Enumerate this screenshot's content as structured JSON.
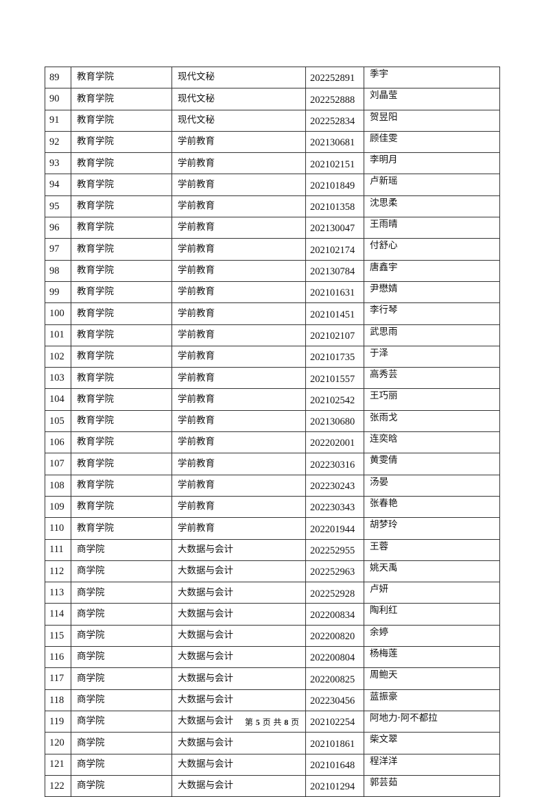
{
  "table": {
    "rows": [
      [
        "89",
        "教育学院",
        "现代文秘",
        "202252891",
        "季宇"
      ],
      [
        "90",
        "教育学院",
        "现代文秘",
        "202252888",
        "刘晶莹"
      ],
      [
        "91",
        "教育学院",
        "现代文秘",
        "202252834",
        "贺昱阳"
      ],
      [
        "92",
        "教育学院",
        "学前教育",
        "202130681",
        "顾佳雯"
      ],
      [
        "93",
        "教育学院",
        "学前教育",
        "202102151",
        "李明月"
      ],
      [
        "94",
        "教育学院",
        "学前教育",
        "202101849",
        "卢新瑶"
      ],
      [
        "95",
        "教育学院",
        "学前教育",
        "202101358",
        "沈思柔"
      ],
      [
        "96",
        "教育学院",
        "学前教育",
        "202130047",
        "王雨晴"
      ],
      [
        "97",
        "教育学院",
        "学前教育",
        "202102174",
        "付舒心"
      ],
      [
        "98",
        "教育学院",
        "学前教育",
        "202130784",
        "唐鑫宇"
      ],
      [
        "99",
        "教育学院",
        "学前教育",
        "202101631",
        "尹懋婧"
      ],
      [
        "100",
        "教育学院",
        "学前教育",
        "202101451",
        "李行琴"
      ],
      [
        "101",
        "教育学院",
        "学前教育",
        "202102107",
        "武思雨"
      ],
      [
        "102",
        "教育学院",
        "学前教育",
        "202101735",
        "于泽"
      ],
      [
        "103",
        "教育学院",
        "学前教育",
        "202101557",
        "高秀芸"
      ],
      [
        "104",
        "教育学院",
        "学前教育",
        "202102542",
        "王巧丽"
      ],
      [
        "105",
        "教育学院",
        "学前教育",
        "202130680",
        "张雨戈"
      ],
      [
        "106",
        "教育学院",
        "学前教育",
        "202202001",
        "连奕晗"
      ],
      [
        "107",
        "教育学院",
        "学前教育",
        "202230316",
        "黄雯倩"
      ],
      [
        "108",
        "教育学院",
        "学前教育",
        "202230243",
        "汤晏"
      ],
      [
        "109",
        "教育学院",
        "学前教育",
        "202230343",
        "张春艳"
      ],
      [
        "110",
        "教育学院",
        "学前教育",
        "202201944",
        "胡梦玲"
      ],
      [
        "111",
        "商学院",
        "大数据与会计",
        "202252955",
        "王蓉"
      ],
      [
        "112",
        "商学院",
        "大数据与会计",
        "202252963",
        "姚天禹"
      ],
      [
        "113",
        "商学院",
        "大数据与会计",
        "202252928",
        "卢妍"
      ],
      [
        "114",
        "商学院",
        "大数据与会计",
        "202200834",
        "陶利红"
      ],
      [
        "115",
        "商学院",
        "大数据与会计",
        "202200820",
        "余婷"
      ],
      [
        "116",
        "商学院",
        "大数据与会计",
        "202200804",
        "杨梅莲"
      ],
      [
        "117",
        "商学院",
        "大数据与会计",
        "202200825",
        "周鲍天"
      ],
      [
        "118",
        "商学院",
        "大数据与会计",
        "202230456",
        "蓝振豪"
      ],
      [
        "119",
        "商学院",
        "大数据与会计",
        "202102254",
        "阿地力·阿不都拉"
      ],
      [
        "120",
        "商学院",
        "大数据与会计",
        "202101861",
        "柴文翠"
      ],
      [
        "121",
        "商学院",
        "大数据与会计",
        "202101648",
        "程洋洋"
      ],
      [
        "122",
        "商学院",
        "大数据与会计",
        "202101294",
        "郭芸茹"
      ]
    ]
  },
  "footer": {
    "prefix": "第",
    "page": "5",
    "middle": "页 共",
    "total": "8",
    "suffix": "页"
  }
}
